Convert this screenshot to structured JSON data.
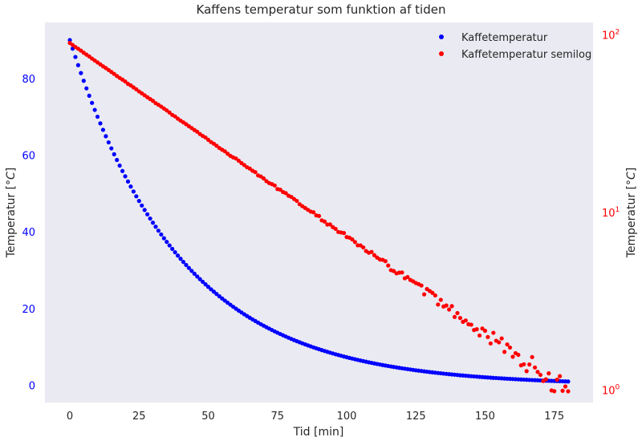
{
  "chart_data": {
    "type": "scatter",
    "title": "Kaffens temperatur som funktion af tiden",
    "xlabel": "Tid [min]",
    "ylabel_left": "Temperatur [$^\\circ C$]",
    "ylabel_left_text": "Temperatur [",
    "ylabel_left_unit": "°C",
    "ylabel_left_close": "]",
    "ylabel_right_text": "Temperatur [",
    "ylabel_right_unit": "°C",
    "ylabel_right_close": "]",
    "xlim": [
      -9,
      189
    ],
    "ylim_left": [
      -4.5,
      94.6
    ],
    "ylim_right_log10": [
      -0.07,
      2.07
    ],
    "x_ticks": [
      0,
      25,
      50,
      75,
      100,
      125,
      150,
      175
    ],
    "y_left_ticks": [
      0,
      20,
      40,
      60,
      80
    ],
    "y_right_ticks": [
      {
        "exp": 0,
        "base": "10",
        "sup": "0"
      },
      {
        "exp": 1,
        "base": "10",
        "sup": "1"
      },
      {
        "exp": 2,
        "base": "10",
        "sup": "2"
      }
    ],
    "grid": false,
    "background": "#eaeaf2",
    "legend_position": "top-right",
    "series": [
      {
        "name": "Kaffetemperatur",
        "color": "#0000ff",
        "axis": "left",
        "model": "exponential",
        "T0": 90,
        "decay_per_min": 0.0251,
        "x_start": 0,
        "x_end": 180,
        "x_step": 1
      },
      {
        "name": "Kaffetemperatur semilog",
        "color": "#ff0000",
        "axis": "right-log",
        "model": "exponential-noisy",
        "T0": 90,
        "decay_per_min": 0.0251,
        "x_start": 0,
        "x_end": 180,
        "x_step": 1
      }
    ]
  }
}
